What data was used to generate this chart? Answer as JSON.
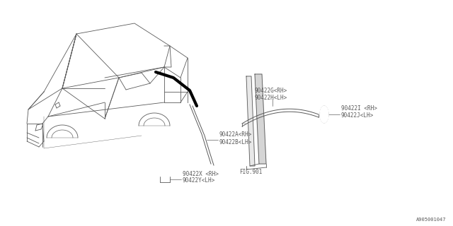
{
  "bg_color": "#ffffff",
  "line_color": "#5a5a5a",
  "thick_color": "#000000",
  "text_color": "#5a5a5a",
  "part_labels": {
    "90422A_RH": "90422A<RH>",
    "90422B_LH": "90422B<LH>",
    "90422G_RH": "90422G<RH>",
    "90422H_LH": "90422H<LH>",
    "90422I_RH": "90422I <RH>",
    "90422J_LH": "90422J<LH>",
    "90422X_RH": "90422X <RH>",
    "90422Y_LH": "90422Y<LH>",
    "fig901": "FIG.901"
  },
  "diagram_id": "A905001047",
  "font_size": 5.5
}
